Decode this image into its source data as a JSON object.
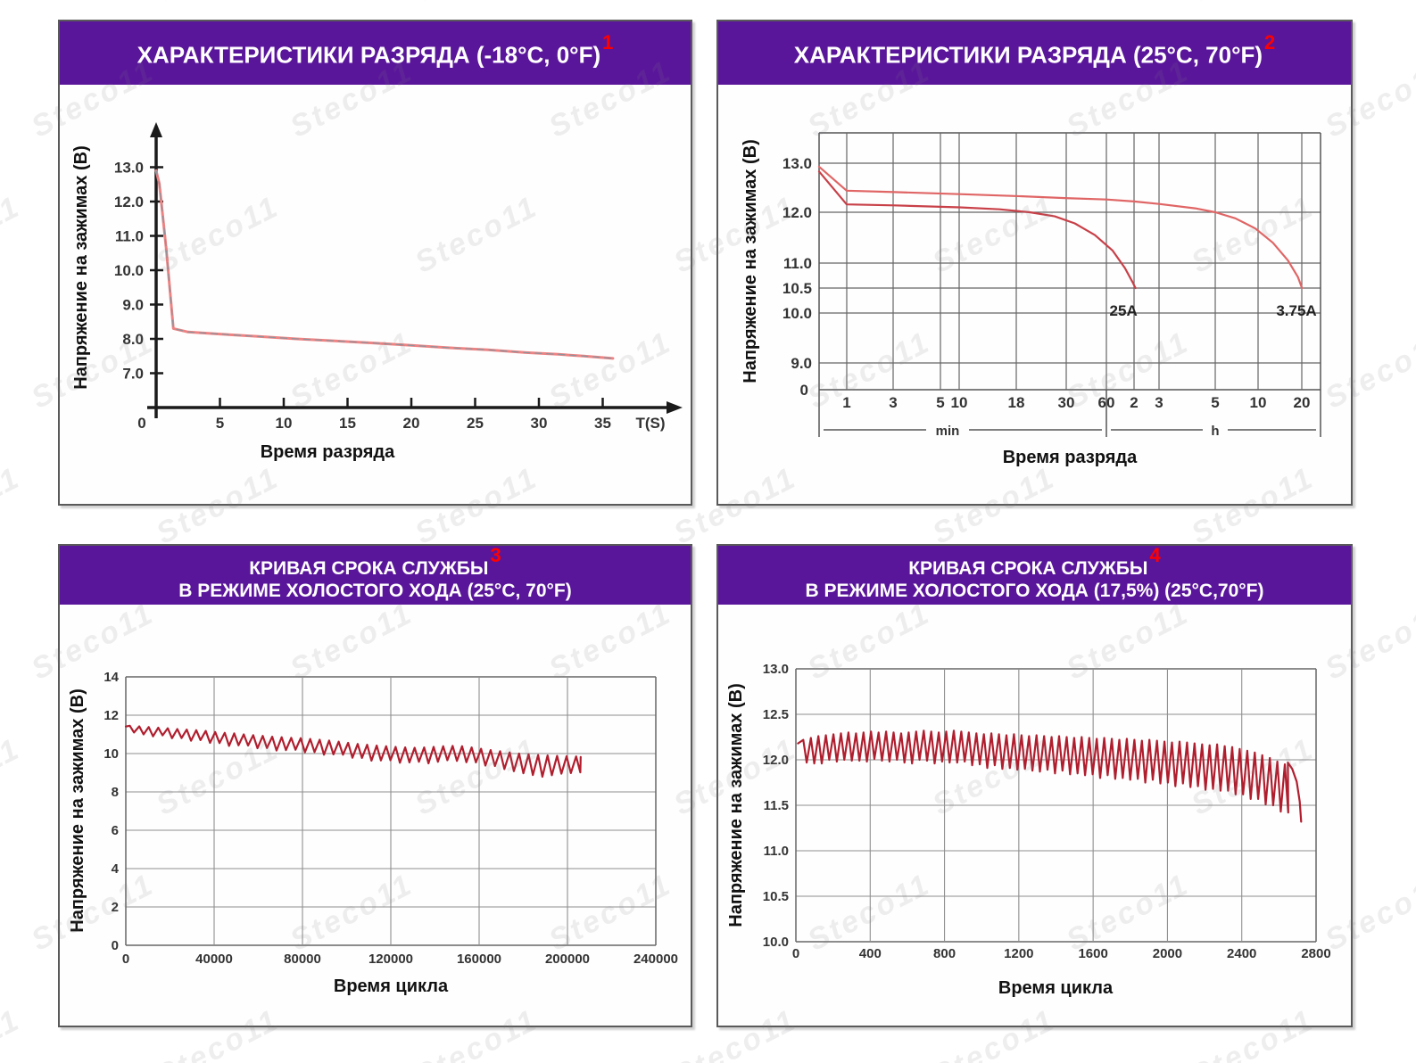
{
  "watermark": {
    "text": "Steco11"
  },
  "colors": {
    "header_purple": "#5a169a",
    "sup_red": "#ff0000",
    "curve_pink": "#ef8282",
    "curve_light_red": "#e06565",
    "curve_red": "#c84048",
    "curve_dark_red": "#b01e2e",
    "grid_gray": "#7a7a7a"
  },
  "panels": [
    {
      "header_line1": "ХАРАКТЕРИСТИКИ РАЗРЯДА (-18°C, 0°F)",
      "header_line2": "",
      "sup": "1"
    },
    {
      "header_line1": "ХАРАКТЕРИСТИКИ РАЗРЯДА (25°C, 70°F)",
      "header_line2": "",
      "sup": "2"
    },
    {
      "header_line1": "КРИВАЯ СРОКА СЛУЖБЫ",
      "header_line2": "В РЕЖИМЕ ХОЛОСТОГО ХОДА (25°C, 70°F)",
      "sup": "3"
    },
    {
      "header_line1": "КРИВАЯ СРОКА СЛУЖБЫ",
      "header_line2": "В РЕЖИМЕ ХОЛОСТОГО ХОДА (17,5%) (25°C,70°F)",
      "sup": "4"
    }
  ],
  "chart_data": [
    {
      "type": "line",
      "style": "axes",
      "title": "ХАРАКТЕРИСТИКИ РАЗРЯДА (-18°C, 0°F)",
      "xlabel": "Время разряда",
      "ylabel": "Напряжение на зажимах (В)",
      "x_unit_label": "T(S)",
      "origin_label": "0",
      "x_ticks": [
        5,
        10,
        15,
        20,
        25,
        30,
        35
      ],
      "y_ticks": [
        "13.0",
        "12.0",
        "11.0",
        "10.0",
        "9.0",
        "8.0",
        "7.0"
      ],
      "y_tick_values": [
        13,
        12,
        11,
        10,
        9,
        8,
        7
      ],
      "x_range": [
        0,
        40
      ],
      "y_range": [
        6,
        14
      ],
      "series": [
        {
          "name": "discharge-curve",
          "points": [
            [
              0,
              12.9
            ],
            [
              0.25,
              12.52
            ],
            [
              0.8,
              10.6
            ],
            [
              1.35,
              8.3
            ],
            [
              2.5,
              8.2
            ],
            [
              5,
              8.14
            ],
            [
              8,
              8.07
            ],
            [
              11,
              8.0
            ],
            [
              14,
              7.94
            ],
            [
              17,
              7.88
            ],
            [
              20,
              7.81
            ],
            [
              23,
              7.74
            ],
            [
              26,
              7.68
            ],
            [
              29,
              7.6
            ],
            [
              31.5,
              7.55
            ],
            [
              33.5,
              7.5
            ],
            [
              35.8,
              7.43
            ]
          ]
        }
      ]
    },
    {
      "type": "line",
      "style": "loggrid",
      "title": "ХАРАКТЕРИСТИКИ РАЗРЯДА (25°C, 70°F)",
      "xlabel": "Время разряда",
      "ylabel": "Напряжение на зажимах (В)",
      "x_ticks": [
        "1",
        "3",
        "5",
        "10",
        "18",
        "30",
        "60",
        "2",
        "3",
        "5",
        "10",
        "20"
      ],
      "x_group_labels": [
        "min",
        "h"
      ],
      "y_ticks": [
        {
          "label": "13.0",
          "v": 13
        },
        {
          "label": "12.0",
          "v": 12
        },
        {
          "label": "11.0",
          "v": 11
        },
        {
          "label": "10.5",
          "v": 10.5
        },
        {
          "label": "10.0",
          "v": 10
        },
        {
          "label": "9.0",
          "v": 9
        }
      ],
      "y_zero_label": "0",
      "series": [
        {
          "name": "3.75A",
          "label": "3.75A",
          "label_pos": [
            0.952,
            10.2
          ],
          "points": [
            [
              0,
              12.93
            ],
            [
              0.055,
              12.44
            ],
            [
              0.15,
              12.41
            ],
            [
              0.28,
              12.37
            ],
            [
              0.39,
              12.33
            ],
            [
              0.49,
              12.29
            ],
            [
              0.573,
              12.26
            ],
            [
              0.628,
              12.22
            ],
            [
              0.678,
              12.17
            ],
            [
              0.75,
              12.08
            ],
            [
              0.79,
              12.0
            ],
            [
              0.83,
              11.88
            ],
            [
              0.87,
              11.68
            ],
            [
              0.905,
              11.4
            ],
            [
              0.935,
              11.05
            ],
            [
              0.955,
              10.72
            ],
            [
              0.963,
              10.5
            ]
          ]
        },
        {
          "name": "25A",
          "label": "25A",
          "label_pos": [
            0.607,
            10.2
          ],
          "points": [
            [
              0,
              12.83
            ],
            [
              0.055,
              12.16
            ],
            [
              0.15,
              12.14
            ],
            [
              0.28,
              12.1
            ],
            [
              0.36,
              12.06
            ],
            [
              0.42,
              12.0
            ],
            [
              0.47,
              11.92
            ],
            [
              0.51,
              11.78
            ],
            [
              0.55,
              11.55
            ],
            [
              0.585,
              11.25
            ],
            [
              0.61,
              10.9
            ],
            [
              0.625,
              10.62
            ],
            [
              0.631,
              10.5
            ]
          ]
        }
      ]
    },
    {
      "type": "line",
      "style": "grid",
      "title": "КРИВАЯ СРОКА СЛУЖБЫ В РЕЖИМЕ ХОЛОСТОГО ХОДА (25°C, 70°F)",
      "xlabel": "Время цикла",
      "ylabel": "Напряжение на зажимах (В)",
      "x_ticks": [
        0,
        40000,
        80000,
        120000,
        160000,
        200000,
        240000
      ],
      "y_ticks": [
        0,
        2,
        4,
        6,
        8,
        10,
        12,
        14
      ],
      "y_tick_labels": [
        "0",
        "2",
        "4",
        "6",
        "8",
        "10",
        "12",
        "14"
      ],
      "x_range": [
        0,
        240000
      ],
      "y_range": [
        0,
        14
      ],
      "sawtooth": {
        "x0": 1800,
        "dx": 4300,
        "tops": [
          11.45,
          11.42,
          11.38,
          11.35,
          11.32,
          11.28,
          11.25,
          11.22,
          11.18,
          11.12,
          11.08,
          11.05,
          11.0,
          10.96,
          10.92,
          10.88,
          10.85,
          10.82,
          10.8,
          10.76,
          10.72,
          10.68,
          10.62,
          10.56,
          10.5,
          10.46,
          10.42,
          10.38,
          10.35,
          10.32,
          10.3,
          10.32,
          10.35,
          10.38,
          10.4,
          10.38,
          10.32,
          10.25,
          10.18,
          10.12,
          10.06,
          10.0,
          9.96,
          9.92,
          9.9,
          9.88,
          9.86,
          9.85
        ],
        "dips": [
          0.35,
          0.42,
          0.48,
          0.4,
          0.52,
          0.47,
          0.58,
          0.52,
          0.62,
          0.57,
          0.68,
          0.62,
          0.58,
          0.68,
          0.63,
          0.72,
          0.67,
          0.62,
          0.73,
          0.68,
          0.78,
          0.72,
          0.68,
          0.78,
          0.73,
          0.83,
          0.78,
          0.73,
          0.83,
          0.78,
          0.73,
          0.83,
          0.78,
          0.73,
          0.78,
          0.83,
          0.78,
          0.88,
          0.83,
          0.93,
          0.98,
          1.03,
          1.08,
          1.13,
          1.03,
          0.93,
          0.88,
          0.83
        ],
        "tail": [
          [
            206000,
            9.82
          ]
        ]
      }
    },
    {
      "type": "line",
      "style": "grid",
      "title": "КРИВАЯ СРОКА СЛУЖБЫ В РЕЖИМЕ ХОЛОСТОГО ХОДА (17,5%) (25°C,70°F)",
      "xlabel": "Время цикла",
      "ylabel": "Напряжение на зажимах (В)",
      "x_ticks": [
        0,
        400,
        800,
        1200,
        1600,
        2000,
        2400,
        2800
      ],
      "y_ticks": [
        10,
        10.5,
        11,
        11.5,
        12,
        12.5,
        13
      ],
      "y_tick_labels": [
        "10.0",
        "10.5",
        "11.0",
        "11.5",
        "12.0",
        "12.5",
        "13.0"
      ],
      "x_range": [
        0,
        2800
      ],
      "y_range": [
        10,
        13
      ],
      "sawtooth": {
        "x0": 40,
        "dx": 40.5,
        "tops": [
          12.22,
          12.24,
          12.26,
          12.27,
          12.28,
          12.29,
          12.3,
          12.29,
          12.3,
          12.31,
          12.3,
          12.31,
          12.3,
          12.29,
          12.3,
          12.31,
          12.32,
          12.31,
          12.3,
          12.31,
          12.32,
          12.31,
          12.3,
          12.29,
          12.28,
          12.29,
          12.28,
          12.27,
          12.28,
          12.27,
          12.26,
          12.27,
          12.26,
          12.25,
          12.26,
          12.25,
          12.24,
          12.25,
          12.24,
          12.23,
          12.24,
          12.23,
          12.22,
          12.23,
          12.22,
          12.21,
          12.22,
          12.21,
          12.2,
          12.19,
          12.2,
          12.19,
          12.18,
          12.17,
          12.16,
          12.17,
          12.15,
          12.14,
          12.12,
          12.1,
          12.08,
          12.05,
          12.02,
          11.98,
          11.95
        ],
        "dips": [
          0.25,
          0.28,
          0.3,
          0.27,
          0.3,
          0.29,
          0.31,
          0.3,
          0.32,
          0.3,
          0.31,
          0.33,
          0.3,
          0.32,
          0.34,
          0.31,
          0.33,
          0.35,
          0.32,
          0.34,
          0.35,
          0.33,
          0.36,
          0.34,
          0.37,
          0.35,
          0.38,
          0.36,
          0.39,
          0.37,
          0.38,
          0.4,
          0.37,
          0.4,
          0.38,
          0.41,
          0.39,
          0.42,
          0.4,
          0.43,
          0.41,
          0.44,
          0.42,
          0.45,
          0.43,
          0.46,
          0.44,
          0.47,
          0.45,
          0.48,
          0.46,
          0.49,
          0.47,
          0.5,
          0.48,
          0.51,
          0.49,
          0.52,
          0.5,
          0.53,
          0.51,
          0.54,
          0.52,
          0.55,
          0.53
        ],
        "tail": [
          [
            2648,
            11.97
          ],
          [
            2672,
            11.9
          ],
          [
            2696,
            11.76
          ],
          [
            2712,
            11.54
          ],
          [
            2720,
            11.32
          ]
        ]
      }
    }
  ]
}
